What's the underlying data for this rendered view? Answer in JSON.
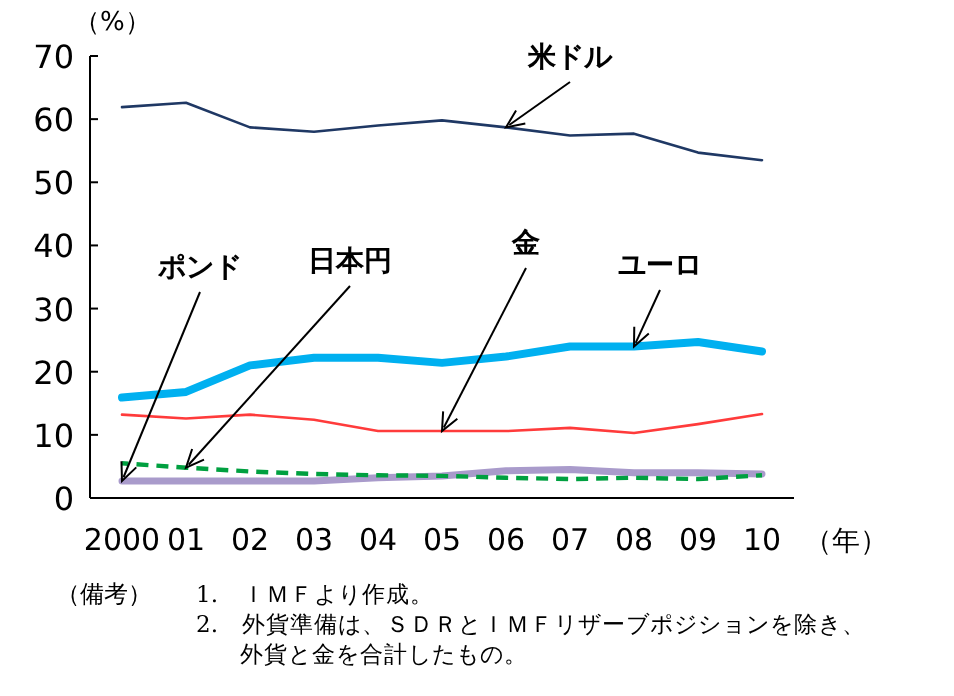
{
  "chart_data": {
    "type": "line",
    "ylabel": "（%）",
    "xlabel": "（年）",
    "categories": [
      "2000",
      "01",
      "02",
      "03",
      "04",
      "05",
      "06",
      "07",
      "08",
      "09",
      "10"
    ],
    "ylim": [
      0,
      70
    ],
    "yticks": [
      0,
      10,
      20,
      30,
      40,
      50,
      60,
      70
    ],
    "grid": false,
    "marker": "none",
    "series": [
      {
        "color": "#1f3864",
        "values": [
          61.9,
          62.6,
          58.7,
          58.0,
          59.0,
          59.8,
          58.7,
          57.4,
          57.7,
          54.7,
          53.5
        ]
      },
      {
        "color": "#00b0f0",
        "values": [
          15.9,
          16.8,
          21.0,
          22.2,
          22.2,
          21.4,
          22.4,
          24.0,
          24.0,
          24.7,
          23.2
        ]
      },
      {
        "color": "#ff3b3b",
        "values": [
          13.2,
          12.6,
          13.2,
          12.4,
          10.6,
          10.6,
          10.6,
          11.1,
          10.3,
          11.7,
          13.3
        ]
      },
      {
        "color": "#a99bcb",
        "values": [
          2.7,
          2.7,
          2.7,
          2.7,
          3.2,
          3.5,
          4.3,
          4.5,
          4.0,
          4.0,
          3.8
        ]
      },
      {
        "color": "#00a040",
        "line_style": "dashed",
        "values": [
          5.5,
          4.8,
          4.2,
          3.8,
          3.6,
          3.5,
          3.2,
          3.0,
          3.2,
          3.0,
          3.6
        ]
      }
    ],
    "annotations": [
      {
        "text": "米ドル",
        "x": "06",
        "y": 58.7
      },
      {
        "text": "ユーロ",
        "x": "08",
        "y": 24.0
      },
      {
        "text": "金",
        "x": "05",
        "y": 10.6
      },
      {
        "text": "日本円",
        "x": "01",
        "y": 4.8
      },
      {
        "text": "ポンド",
        "x": "2000",
        "y": 2.7
      },
      "（備考）",
      "1.　ＩＭＦより作成。",
      "2.　外貨準備は、ＳＤＲとＩＭＦリザーブポジションを除き、外貨と金を合計したもの。"
    ]
  }
}
